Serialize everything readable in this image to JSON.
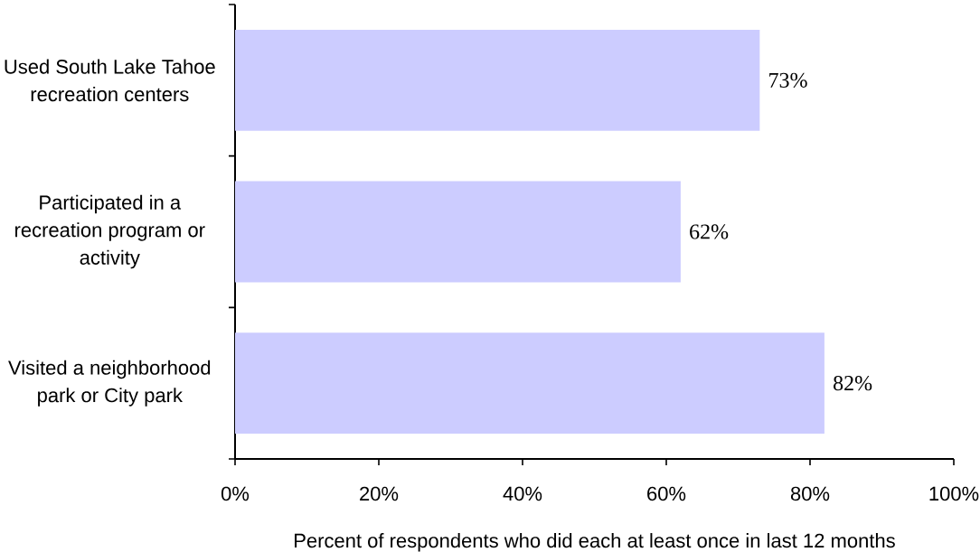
{
  "chart_data": {
    "type": "bar",
    "orientation": "horizontal",
    "categories": [
      "Used South Lake Tahoe recreation centers",
      "Participated in a recreation program or activity",
      "Visited a neighborhood park or City park"
    ],
    "values": [
      73,
      62,
      82
    ],
    "color": "#ccccff",
    "value_labels": [
      "73%",
      "62%",
      "82%"
    ],
    "xlabel": "Percent of respondents who did each at least once in last 12 months",
    "xlim": [
      0,
      100
    ],
    "xticks": [
      {
        "value": 0,
        "label": "0%"
      },
      {
        "value": 20,
        "label": "20%"
      },
      {
        "value": 40,
        "label": "40%"
      },
      {
        "value": 60,
        "label": "60%"
      },
      {
        "value": 80,
        "label": "80%"
      },
      {
        "value": 100,
        "label": "100%"
      }
    ]
  }
}
